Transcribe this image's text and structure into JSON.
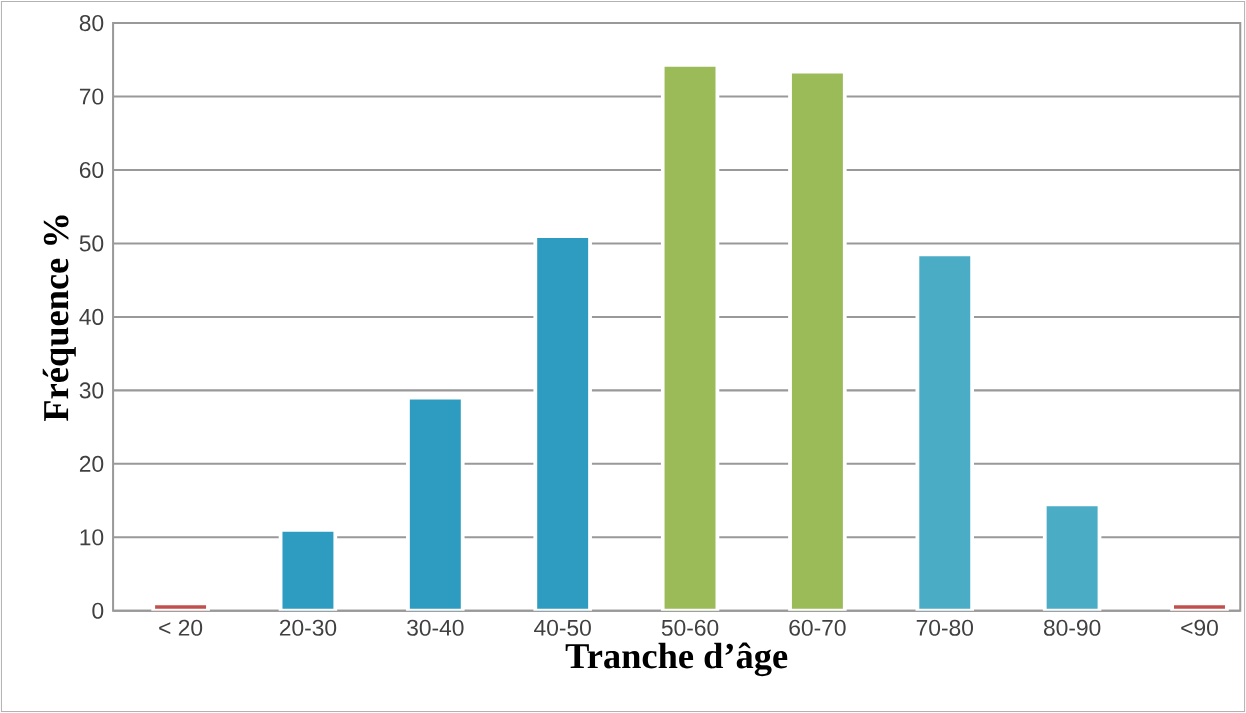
{
  "chart_data": {
    "type": "bar",
    "xlabel": "Tranche d’âge",
    "ylabel": "Fréquence %",
    "categories": [
      "< 20",
      "20-30",
      "30-40",
      "40-50",
      "50-60",
      "60-70",
      "70-80",
      "80-90",
      "<90"
    ],
    "values": [
      1,
      11,
      29,
      51,
      74.3,
      73.4,
      48.5,
      14.5,
      1
    ],
    "colors": [
      "#c0504d",
      "#2e9cc0",
      "#2e9cc0",
      "#2e9cc0",
      "#9bbb59",
      "#9bbb59",
      "#4bacc6",
      "#4bacc6",
      "#c0504d"
    ],
    "ylim": [
      0,
      80
    ],
    "yticks": [
      0,
      10,
      20,
      30,
      40,
      50,
      60,
      70,
      80
    ],
    "grid": "y"
  }
}
